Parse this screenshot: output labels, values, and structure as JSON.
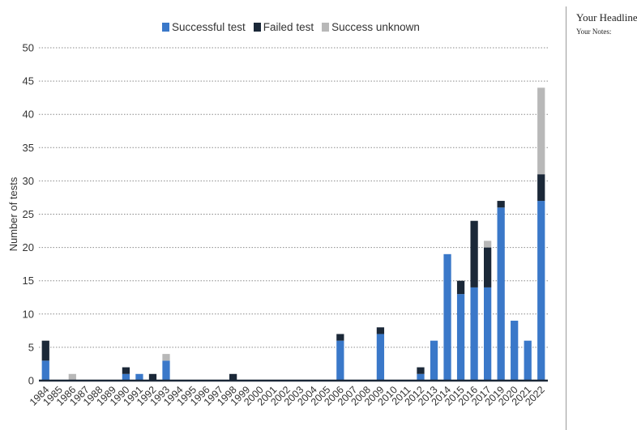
{
  "chart_data": {
    "type": "bar",
    "stacked": true,
    "ylabel": "Number of tests",
    "xlabel": "",
    "ylim": [
      0,
      50
    ],
    "yticks": [
      0,
      5,
      10,
      15,
      20,
      25,
      30,
      35,
      40,
      45,
      50
    ],
    "grid": true,
    "legend_position": "top-center",
    "categories": [
      "1984",
      "1985",
      "1986",
      "1987",
      "1988",
      "1989",
      "1990",
      "1991",
      "1992",
      "1993",
      "1994",
      "1995",
      "1996",
      "1997",
      "1998",
      "1999",
      "2000",
      "2001",
      "2002",
      "2003",
      "2004",
      "2005",
      "2006",
      "2007",
      "2008",
      "2009",
      "2010",
      "2011",
      "2012",
      "2013",
      "2014",
      "2015",
      "2016",
      "2017",
      "2019",
      "2020",
      "2021",
      "2022"
    ],
    "series": [
      {
        "name": "Successful test",
        "color": "#3a78c9",
        "values": [
          3,
          0,
          0,
          0,
          0,
          0,
          1,
          1,
          0,
          3,
          0,
          0,
          0,
          0,
          0,
          0,
          0,
          0,
          0,
          0,
          0,
          0,
          6,
          0,
          0,
          7,
          0,
          0,
          1,
          6,
          19,
          13,
          14,
          14,
          26,
          9,
          6,
          27
        ]
      },
      {
        "name": "Failed test",
        "color": "#1b2838",
        "values": [
          3,
          0,
          0,
          0,
          0,
          0,
          1,
          0,
          1,
          0,
          0,
          0,
          0,
          0,
          1,
          0,
          0,
          0,
          0,
          0,
          0,
          0,
          1,
          0,
          0,
          1,
          0,
          0,
          1,
          0,
          0,
          2,
          10,
          6,
          1,
          0,
          0,
          4
        ]
      },
      {
        "name": "Success unknown",
        "color": "#b8b8b8",
        "values": [
          0,
          0,
          1,
          0,
          0,
          0,
          0,
          0,
          0,
          1,
          0,
          0,
          0,
          0,
          0,
          0,
          0,
          0,
          0,
          0,
          0,
          0,
          0,
          0,
          0,
          0,
          0,
          0,
          0,
          0,
          0,
          0,
          0,
          1,
          0,
          0,
          0,
          13
        ]
      }
    ]
  },
  "side_panel": {
    "headline": "Your Headline",
    "notes": "Your Notes:"
  }
}
